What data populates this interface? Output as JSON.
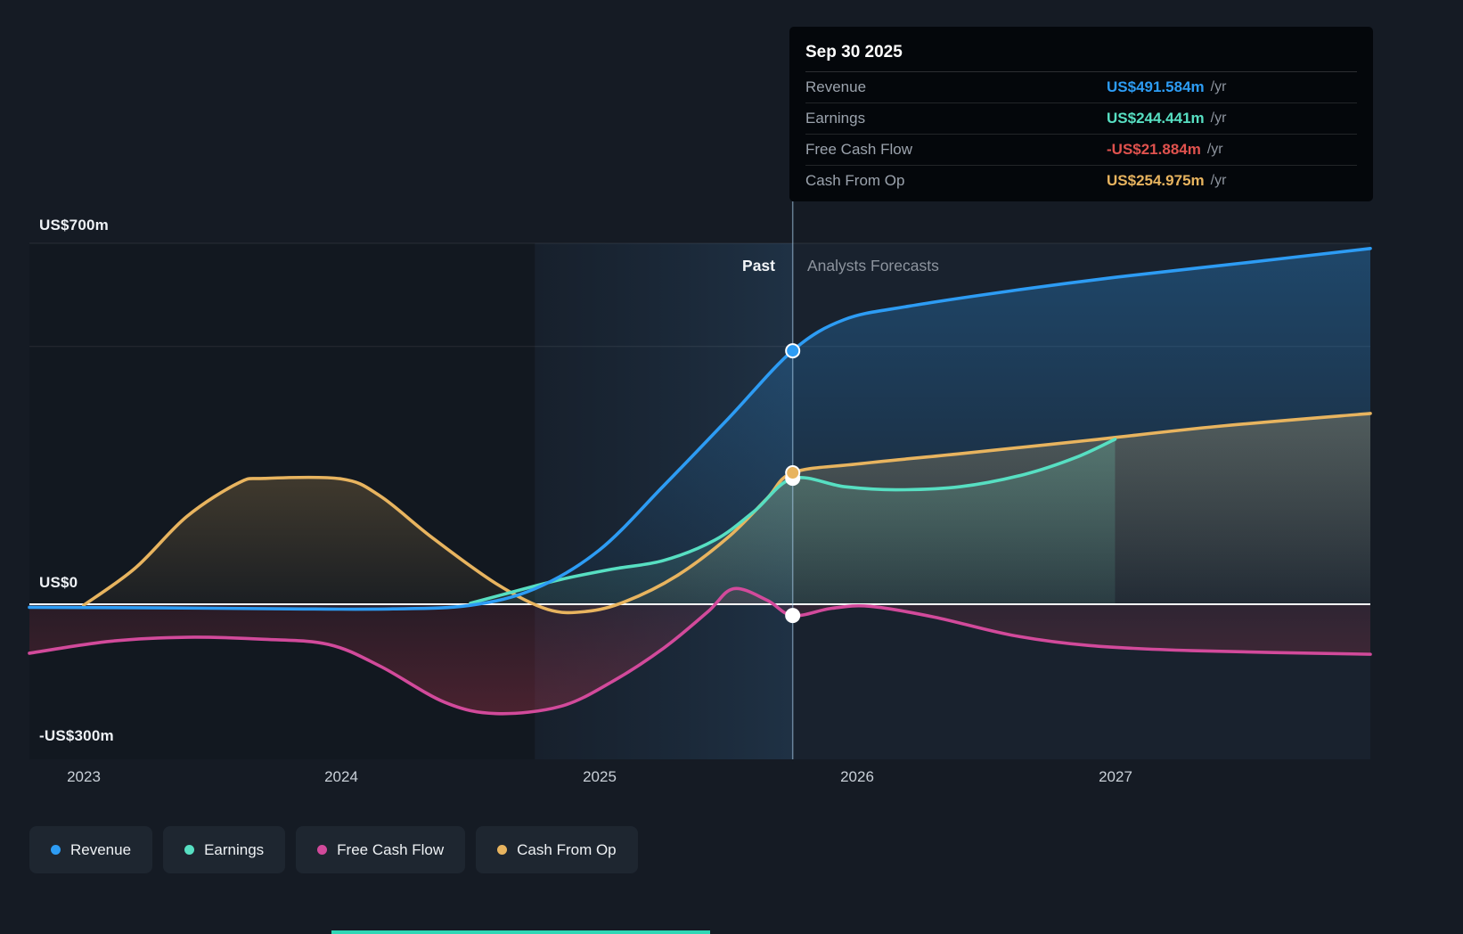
{
  "page": {
    "background": "#151b24"
  },
  "tooltip": {
    "date": "Sep 30 2025",
    "rows": [
      {
        "label": "Revenue",
        "value": "US$491.584m",
        "suffix": "/yr",
        "value_color": "#2d9cf4"
      },
      {
        "label": "Earnings",
        "value": "US$244.441m",
        "suffix": "/yr",
        "value_color": "#57dfc2"
      },
      {
        "label": "Free Cash Flow",
        "value": "-US$21.884m",
        "suffix": "/yr",
        "value_color": "#e0524e"
      },
      {
        "label": "Cash From Op",
        "value": "US$254.975m",
        "suffix": "/yr",
        "value_color": "#e8b45f"
      }
    ]
  },
  "annotations": {
    "past": "Past",
    "forecast": "Analysts Forecasts"
  },
  "axis": {
    "y_labels": [
      "US$700m",
      "US$0",
      "-US$300m"
    ],
    "x_labels": [
      "2023",
      "2024",
      "2025",
      "2026",
      "2027"
    ]
  },
  "legend": [
    {
      "label": "Revenue",
      "color": "#2d9cf4"
    },
    {
      "label": "Earnings",
      "color": "#57dfc2"
    },
    {
      "label": "Free Cash Flow",
      "color": "#d24a9b"
    },
    {
      "label": "Cash From Op",
      "color": "#e8b45f"
    }
  ],
  "chart_data": {
    "type": "line",
    "x_unit": "year (decimal)",
    "x_range": [
      2022.79,
      2027.99
    ],
    "y_range": [
      -300,
      700
    ],
    "x_ticks": [
      2023,
      2024,
      2025,
      2026,
      2027
    ],
    "gridline_values": [
      700,
      500
    ],
    "zero_value": 0,
    "divider_x": 2025.75,
    "divider_date": "Sep 30 2025",
    "band_x": [
      2024.75,
      2025.75
    ],
    "legend_position": "bottom-left",
    "series": [
      {
        "name": "Cash From Op",
        "color": "#e8b45f",
        "marker_value": 254.975,
        "marker_fill": "#e8b45f",
        "marker_stroke": "#ffffff",
        "fill_from": "rgba(232,180,95,0.30)",
        "fill_to": "rgba(232,180,95,0.03)",
        "points": [
          [
            2023.0,
            -2
          ],
          [
            2023.2,
            70
          ],
          [
            2023.4,
            170
          ],
          [
            2023.6,
            235
          ],
          [
            2023.7,
            244
          ],
          [
            2024.0,
            243
          ],
          [
            2024.15,
            210
          ],
          [
            2024.35,
            130
          ],
          [
            2024.6,
            40
          ],
          [
            2024.8,
            -10
          ],
          [
            2024.95,
            -14
          ],
          [
            2025.1,
            5
          ],
          [
            2025.3,
            55
          ],
          [
            2025.5,
            130
          ],
          [
            2025.65,
            205
          ],
          [
            2025.75,
            255
          ],
          [
            2026.0,
            272
          ],
          [
            2026.4,
            292
          ],
          [
            2026.9,
            318
          ],
          [
            2027.4,
            345
          ],
          [
            2027.99,
            370
          ]
        ]
      },
      {
        "name": "Free Cash Flow",
        "color": "#d24a9b",
        "marker_value": -21.884,
        "marker_fill": "#ffffff",
        "marker_stroke": "#ffffff",
        "fill_from": "rgba(190,55,80,0.10)",
        "fill_to": "rgba(190,55,80,0.32)",
        "points": [
          [
            2022.79,
            -95
          ],
          [
            2023.1,
            -72
          ],
          [
            2023.4,
            -64
          ],
          [
            2023.7,
            -68
          ],
          [
            2023.95,
            -78
          ],
          [
            2024.15,
            -120
          ],
          [
            2024.4,
            -190
          ],
          [
            2024.6,
            -212
          ],
          [
            2024.85,
            -198
          ],
          [
            2025.05,
            -150
          ],
          [
            2025.25,
            -85
          ],
          [
            2025.42,
            -15
          ],
          [
            2025.52,
            30
          ],
          [
            2025.65,
            8
          ],
          [
            2025.75,
            -22
          ],
          [
            2025.9,
            -8
          ],
          [
            2026.05,
            -4
          ],
          [
            2026.3,
            -25
          ],
          [
            2026.6,
            -60
          ],
          [
            2026.9,
            -80
          ],
          [
            2027.3,
            -90
          ],
          [
            2027.99,
            -97
          ]
        ]
      },
      {
        "name": "Revenue",
        "color": "#2d9cf4",
        "marker_value": 491.584,
        "marker_fill": "#2d9cf4",
        "marker_stroke": "#ffffff",
        "fill_from": "rgba(45,156,244,0.30)",
        "fill_to": "rgba(45,156,244,0.02)",
        "points": [
          [
            2022.79,
            -6
          ],
          [
            2023.3,
            -7
          ],
          [
            2023.8,
            -9
          ],
          [
            2024.2,
            -9
          ],
          [
            2024.5,
            -2
          ],
          [
            2024.75,
            30
          ],
          [
            2025.0,
            105
          ],
          [
            2025.25,
            230
          ],
          [
            2025.5,
            360
          ],
          [
            2025.75,
            492
          ],
          [
            2025.95,
            552
          ],
          [
            2026.2,
            578
          ],
          [
            2026.6,
            608
          ],
          [
            2027.0,
            634
          ],
          [
            2027.5,
            662
          ],
          [
            2027.99,
            690
          ]
        ]
      },
      {
        "name": "Earnings",
        "color": "#57dfc2",
        "marker_value": 244.441,
        "marker_fill": "#ffffff",
        "marker_stroke": "#ffffff",
        "fill_from": "rgba(110,205,180,0.26)",
        "fill_to": "rgba(110,205,180,0.10)",
        "points": [
          [
            2024.5,
            2
          ],
          [
            2024.65,
            22
          ],
          [
            2024.85,
            48
          ],
          [
            2025.05,
            68
          ],
          [
            2025.25,
            85
          ],
          [
            2025.45,
            125
          ],
          [
            2025.6,
            180
          ],
          [
            2025.75,
            244
          ],
          [
            2025.95,
            228
          ],
          [
            2026.15,
            222
          ],
          [
            2026.4,
            228
          ],
          [
            2026.65,
            252
          ],
          [
            2026.85,
            285
          ],
          [
            2027.0,
            320
          ]
        ]
      }
    ]
  }
}
